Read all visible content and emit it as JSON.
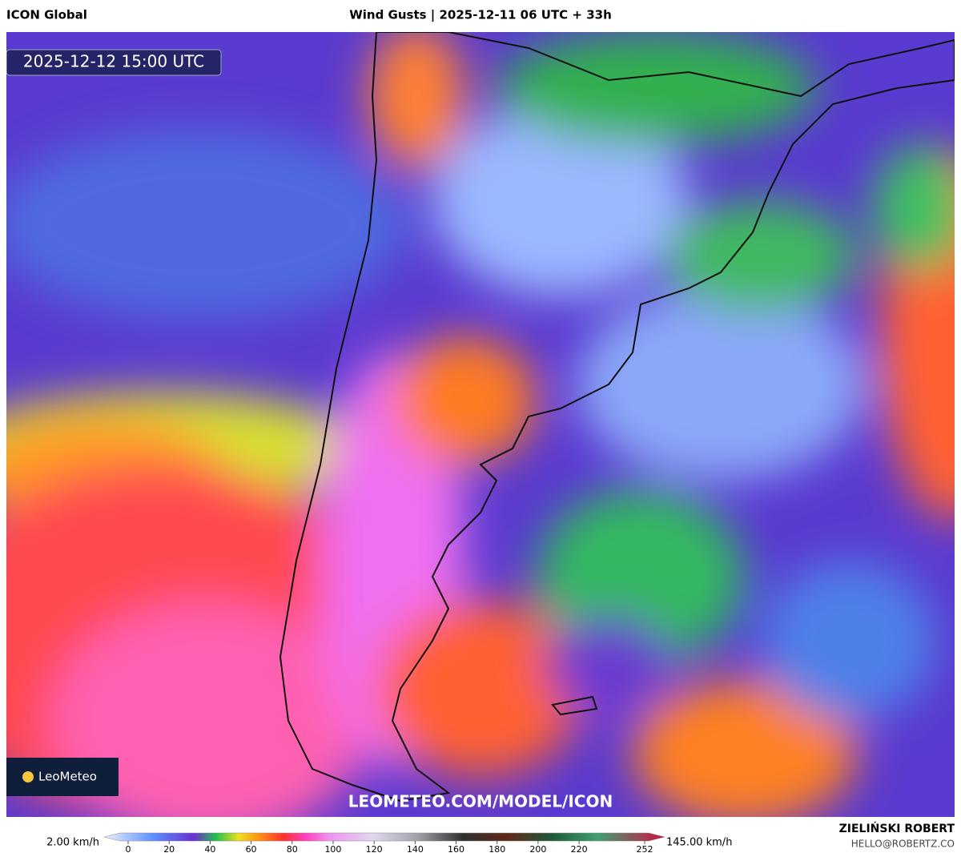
{
  "header": {
    "left": "ICON Global",
    "center": "Wind Gusts | 2025-12-11 06 UTC + 33h"
  },
  "map": {
    "timestamp": "2025-12-12 15:00 UTC",
    "watermark": "LEOMETEO.COM/MODEL/ICON",
    "logo": "LeoMeteo"
  },
  "legend": {
    "min_label": "2.00 km/h",
    "max_label": "145.00 km/h",
    "ticks": [
      0,
      20,
      40,
      60,
      80,
      100,
      120,
      140,
      160,
      180,
      200,
      220,
      252
    ]
  },
  "footer": {
    "author": "ZIELIŃSKI ROBERT",
    "email": "HELLO@ROBERTZ.CO"
  }
}
